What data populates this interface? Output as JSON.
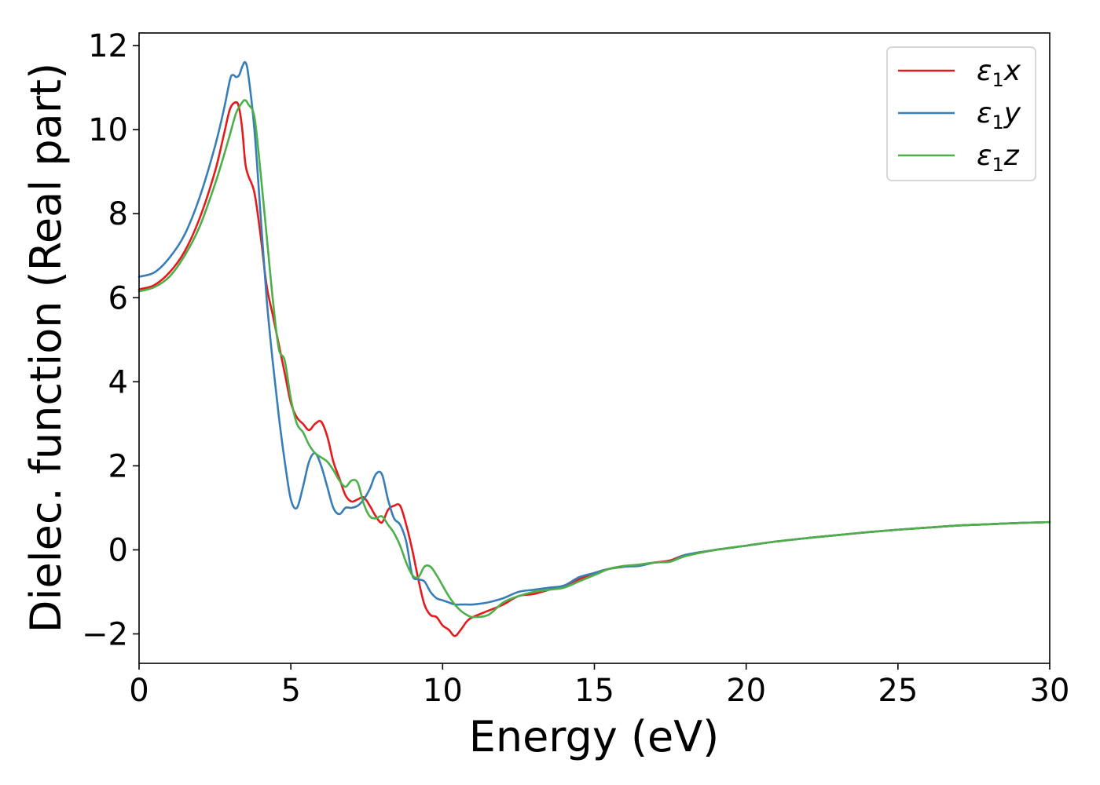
{
  "chart_data": {
    "type": "line",
    "title": "",
    "xlabel": "Energy (eV)",
    "ylabel": "Dielec. function (Real part)",
    "xlim": [
      0,
      30
    ],
    "ylim": [
      -2.7,
      12.3
    ],
    "xticks": [
      0,
      5,
      10,
      15,
      20,
      25,
      30
    ],
    "xtick_labels": [
      "0",
      "5",
      "10",
      "15",
      "20",
      "25",
      "30"
    ],
    "yticks": [
      -2,
      0,
      2,
      4,
      6,
      8,
      10,
      12
    ],
    "ytick_labels": [
      "−2",
      "0",
      "2",
      "4",
      "6",
      "8",
      "10",
      "12"
    ],
    "grid": false,
    "legend_position": "top-right",
    "series": [
      {
        "name": "ε1x",
        "legend_base": "ε",
        "legend_sub": "1",
        "legend_var": "x",
        "color": "#e41a1c",
        "x": [
          0,
          0.5,
          1,
          1.5,
          2,
          2.5,
          2.8,
          3.0,
          3.2,
          3.3,
          3.4,
          3.5,
          3.6,
          3.8,
          4.0,
          4.2,
          4.4,
          4.6,
          4.8,
          5.0,
          5.2,
          5.4,
          5.6,
          5.8,
          6.0,
          6.2,
          6.4,
          6.6,
          6.8,
          7.0,
          7.2,
          7.4,
          7.6,
          7.8,
          8.0,
          8.2,
          8.4,
          8.6,
          8.8,
          9.0,
          9.2,
          9.4,
          9.6,
          9.8,
          10.0,
          10.2,
          10.4,
          10.6,
          10.8,
          11.0,
          11.5,
          12.0,
          12.5,
          13.0,
          13.5,
          14.0,
          14.5,
          15.0,
          15.5,
          16.0,
          16.5,
          17.0,
          17.5,
          18.0,
          19.0,
          20.0,
          21.0,
          22.0,
          23.0,
          24.0,
          25.0,
          26.0,
          27.0,
          28.0,
          29.0,
          30.0
        ],
        "values": [
          6.2,
          6.3,
          6.6,
          7.1,
          7.9,
          9.0,
          9.9,
          10.5,
          10.65,
          10.5,
          10.0,
          9.2,
          8.9,
          8.5,
          7.5,
          6.3,
          5.6,
          4.9,
          4.2,
          3.5,
          3.15,
          3.0,
          2.85,
          3.0,
          3.05,
          2.7,
          2.1,
          1.7,
          1.3,
          1.15,
          1.2,
          1.25,
          1.05,
          0.8,
          0.65,
          0.95,
          1.05,
          1.05,
          0.6,
          0.0,
          -0.7,
          -1.3,
          -1.55,
          -1.6,
          -1.8,
          -1.9,
          -2.05,
          -1.9,
          -1.7,
          -1.6,
          -1.45,
          -1.3,
          -1.1,
          -1.05,
          -0.95,
          -0.85,
          -0.7,
          -0.55,
          -0.45,
          -0.4,
          -0.35,
          -0.3,
          -0.25,
          -0.12,
          0.0,
          0.1,
          0.2,
          0.28,
          0.35,
          0.42,
          0.48,
          0.53,
          0.58,
          0.61,
          0.64,
          0.66
        ]
      },
      {
        "name": "ε1y",
        "legend_base": "ε",
        "legend_sub": "1",
        "legend_var": "y",
        "color": "#377eb8",
        "x": [
          0,
          0.5,
          1,
          1.5,
          2,
          2.5,
          2.8,
          3.0,
          3.1,
          3.2,
          3.3,
          3.4,
          3.5,
          3.6,
          3.8,
          4.0,
          4.2,
          4.4,
          4.6,
          4.8,
          5.0,
          5.2,
          5.4,
          5.6,
          5.8,
          6.0,
          6.2,
          6.4,
          6.6,
          6.8,
          7.0,
          7.2,
          7.4,
          7.6,
          7.8,
          8.0,
          8.2,
          8.4,
          8.6,
          8.8,
          9.0,
          9.2,
          9.4,
          9.6,
          9.8,
          10.0,
          10.2,
          10.4,
          10.6,
          10.8,
          11.0,
          11.5,
          12.0,
          12.5,
          13.0,
          13.5,
          14.0,
          14.5,
          15.0,
          15.5,
          16.0,
          16.5,
          17.0,
          17.5,
          18.0,
          19.0,
          20.0,
          21.0,
          22.0,
          23.0,
          24.0,
          25.0,
          26.0,
          27.0,
          28.0,
          29.0,
          30.0
        ],
        "values": [
          6.5,
          6.6,
          6.95,
          7.5,
          8.4,
          9.6,
          10.5,
          11.2,
          11.3,
          11.25,
          11.3,
          11.5,
          11.6,
          11.3,
          10.0,
          8.0,
          6.0,
          4.5,
          3.2,
          2.1,
          1.2,
          1.0,
          1.5,
          2.1,
          2.3,
          2.0,
          1.5,
          1.0,
          0.85,
          1.0,
          1.0,
          1.05,
          1.2,
          1.45,
          1.8,
          1.8,
          1.2,
          0.75,
          0.6,
          0.2,
          -0.6,
          -0.7,
          -0.75,
          -1.0,
          -1.15,
          -1.2,
          -1.25,
          -1.3,
          -1.3,
          -1.3,
          -1.3,
          -1.25,
          -1.15,
          -1.0,
          -0.95,
          -0.9,
          -0.85,
          -0.65,
          -0.55,
          -0.45,
          -0.4,
          -0.38,
          -0.3,
          -0.28,
          -0.12,
          0.0,
          0.1,
          0.2,
          0.28,
          0.35,
          0.42,
          0.48,
          0.53,
          0.58,
          0.61,
          0.64,
          0.66
        ]
      },
      {
        "name": "ε1z",
        "legend_base": "ε",
        "legend_sub": "1",
        "legend_var": "z",
        "color": "#4daf4a",
        "x": [
          0,
          0.5,
          1,
          1.5,
          2,
          2.5,
          2.8,
          3.0,
          3.2,
          3.4,
          3.5,
          3.6,
          3.8,
          4.0,
          4.2,
          4.4,
          4.6,
          4.8,
          5.0,
          5.2,
          5.4,
          5.6,
          5.8,
          6.0,
          6.2,
          6.4,
          6.6,
          6.8,
          7.0,
          7.2,
          7.4,
          7.6,
          7.8,
          8.0,
          8.2,
          8.4,
          8.6,
          8.8,
          9.0,
          9.2,
          9.4,
          9.6,
          9.8,
          10.0,
          10.2,
          10.4,
          10.6,
          10.8,
          11.0,
          11.5,
          12.0,
          12.5,
          13.0,
          13.5,
          14.0,
          14.5,
          15.0,
          15.5,
          16.0,
          16.5,
          17.0,
          17.5,
          18.0,
          19.0,
          20.0,
          21.0,
          22.0,
          23.0,
          24.0,
          25.0,
          26.0,
          27.0,
          28.0,
          29.0,
          30.0
        ],
        "values": [
          6.15,
          6.25,
          6.5,
          7.0,
          7.7,
          8.7,
          9.4,
          9.9,
          10.4,
          10.65,
          10.7,
          10.6,
          10.3,
          9.0,
          7.5,
          6.0,
          4.8,
          4.5,
          3.6,
          3.0,
          2.8,
          2.5,
          2.3,
          2.2,
          2.1,
          1.9,
          1.65,
          1.5,
          1.65,
          1.6,
          1.1,
          0.8,
          0.75,
          0.8,
          0.6,
          0.4,
          0.1,
          -0.3,
          -0.6,
          -0.65,
          -0.4,
          -0.4,
          -0.6,
          -0.85,
          -1.1,
          -1.3,
          -1.45,
          -1.55,
          -1.6,
          -1.55,
          -1.25,
          -1.1,
          -1.0,
          -0.95,
          -0.9,
          -0.75,
          -0.6,
          -0.45,
          -0.38,
          -0.35,
          -0.3,
          -0.28,
          -0.15,
          0.0,
          0.1,
          0.2,
          0.28,
          0.35,
          0.42,
          0.48,
          0.53,
          0.58,
          0.61,
          0.64,
          0.66
        ]
      }
    ]
  }
}
